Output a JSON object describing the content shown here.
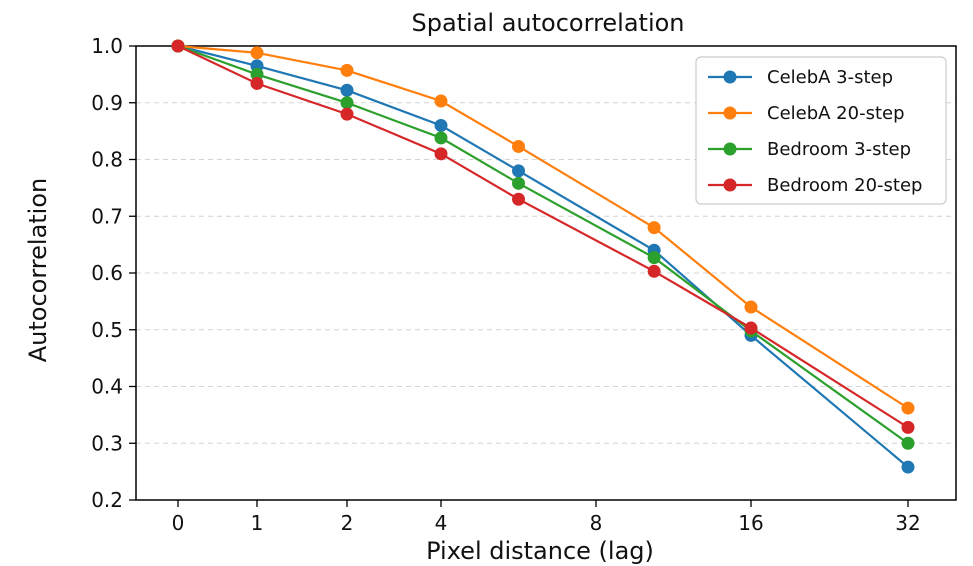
{
  "chart_data": {
    "type": "line",
    "title": "Spatial autocorrelation",
    "xlabel": "Pixel distance (lag)",
    "ylabel": "Autocorrelation",
    "x_ticks": [
      "0",
      "1",
      "2",
      "4",
      "8",
      "16",
      "32"
    ],
    "y_ticks": [
      "0.2",
      "0.3",
      "0.4",
      "0.5",
      "0.6",
      "0.7",
      "0.8",
      "0.9",
      "1.0"
    ],
    "ylim": [
      0.2,
      1.0
    ],
    "grid": "horizontal dashed",
    "legend_position": "top-right",
    "x": [
      0,
      1,
      2,
      4,
      6,
      11,
      16,
      32
    ],
    "series": [
      {
        "name": "CelebA 3-step",
        "color": "#1f77b4",
        "values": [
          1.0,
          0.965,
          0.922,
          0.86,
          0.78,
          0.64,
          0.49,
          0.258
        ]
      },
      {
        "name": "CelebA 20-step",
        "color": "#ff7f0e",
        "values": [
          1.0,
          0.988,
          0.957,
          0.903,
          0.823,
          0.68,
          0.54,
          0.362
        ]
      },
      {
        "name": "Bedroom 3-step",
        "color": "#2ca02c",
        "values": [
          1.0,
          0.95,
          0.9,
          0.838,
          0.758,
          0.627,
          0.498,
          0.3
        ]
      },
      {
        "name": "Bedroom 20-step",
        "color": "#d62728",
        "values": [
          1.0,
          0.934,
          0.88,
          0.81,
          0.73,
          0.603,
          0.503,
          0.328
        ]
      }
    ]
  }
}
